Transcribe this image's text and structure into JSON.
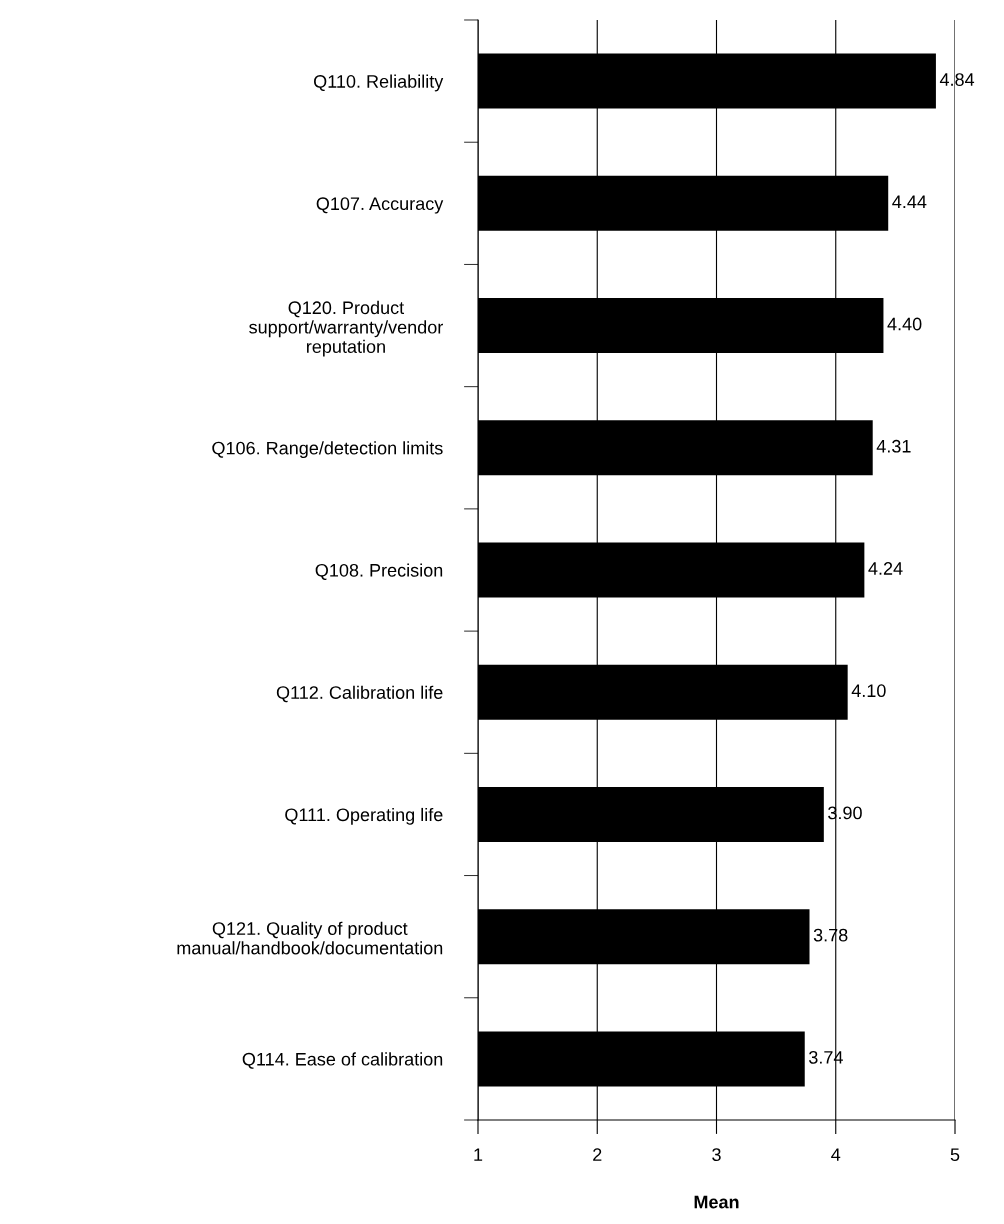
{
  "chart_data": {
    "type": "bar",
    "orientation": "horizontal",
    "xlabel": "Mean",
    "categories": [
      "Q110. Reliability",
      "Q107. Accuracy",
      "Q120. Product\nsupport/warranty/vendor\nreputation",
      "Q106. Range/detection limits",
      "Q108. Precision",
      "Q112. Calibration life",
      "Q111. Operating life",
      "Q121. Quality of product\nmanual/handbook/documentation",
      "Q114. Ease of calibration"
    ],
    "values": [
      4.84,
      4.44,
      4.4,
      4.31,
      4.24,
      4.1,
      3.9,
      3.78,
      3.74
    ],
    "value_labels": [
      "4.84",
      "4.44",
      "4.40",
      "4.31",
      "4.24",
      "4.10",
      "3.90",
      "3.78",
      "3.74"
    ],
    "color": "#000000",
    "xlim": [
      1,
      5
    ],
    "xticks": [
      1,
      2,
      3,
      4,
      5
    ],
    "grid": "x",
    "legend": false
  }
}
